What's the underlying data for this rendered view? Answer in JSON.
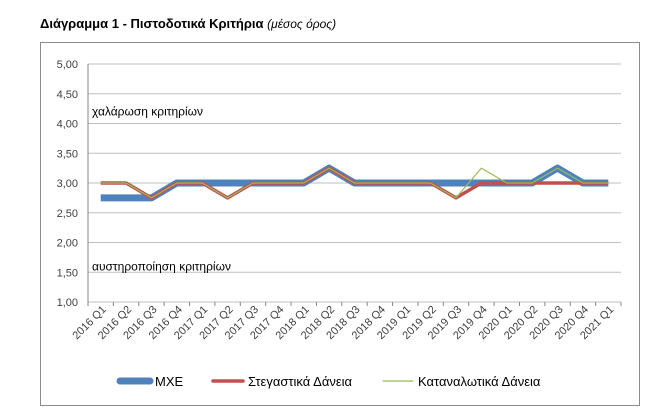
{
  "header": {
    "title": "Διάγραμμα 1 - Πιστοδοτικά Κριτήρια",
    "subtitle": "(μέσος όρος)"
  },
  "chart_data": {
    "type": "line",
    "categories": [
      "2016 Q1",
      "2016 Q2",
      "2016 Q3",
      "2016 Q4",
      "2017 Q1",
      "2017 Q2",
      "2017 Q3",
      "2017 Q4",
      "2018 Q1",
      "2018 Q2",
      "2018 Q3",
      "2018 Q4",
      "2019 Q1",
      "2019 Q2",
      "2019 Q3",
      "2019 Q4",
      "2020 Q1",
      "2020 Q2",
      "2020 Q3",
      "2020 Q4",
      "2021 Q1"
    ],
    "series": [
      {
        "name": "ΜΧΕ",
        "color": "#4f81bd",
        "values": [
          2.75,
          2.75,
          2.75,
          3.0,
          3.0,
          3.0,
          3.0,
          3.0,
          3.0,
          3.25,
          3.0,
          3.0,
          3.0,
          3.0,
          3.0,
          3.0,
          3.0,
          3.0,
          3.25,
          3.0,
          3.0
        ]
      },
      {
        "name": "Στεγαστικά Δάνεια",
        "color": "#c0504d",
        "values": [
          3.0,
          3.0,
          2.75,
          3.0,
          3.0,
          2.75,
          3.0,
          3.0,
          3.0,
          3.25,
          3.0,
          3.0,
          3.0,
          3.0,
          2.75,
          3.0,
          3.0,
          3.0,
          3.0,
          3.0,
          3.0
        ]
      },
      {
        "name": "Καταναλωτικά Δάνεια",
        "color": "#9bbb59",
        "values": [
          3.0,
          3.0,
          2.75,
          3.0,
          3.0,
          2.75,
          3.0,
          3.0,
          3.0,
          3.25,
          3.0,
          3.0,
          3.0,
          3.0,
          2.75,
          3.25,
          3.0,
          3.0,
          3.25,
          3.0,
          3.0
        ]
      }
    ],
    "ylim": [
      1.0,
      5.0
    ],
    "yticks": [
      "1,00",
      "1,50",
      "2,00",
      "2,50",
      "3,00",
      "3,50",
      "4,00",
      "4,50",
      "5,00"
    ],
    "annotations": [
      {
        "text": "χαλάρωση κριτηρίων",
        "y": 4.2
      },
      {
        "text": "αυστηροποίηση κριτηρίων",
        "y": 1.6
      }
    ],
    "grid": true,
    "legend": "bottom"
  }
}
